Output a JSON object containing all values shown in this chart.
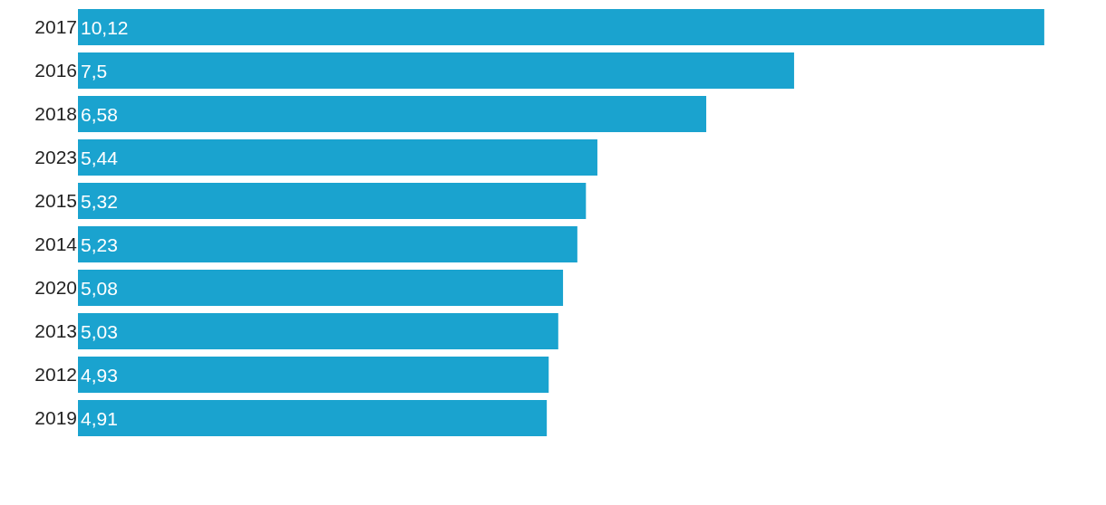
{
  "chart_data": {
    "type": "bar",
    "orientation": "horizontal",
    "categories": [
      "2017",
      "2016",
      "2018",
      "2023",
      "2015",
      "2014",
      "2020",
      "2013",
      "2012",
      "2019"
    ],
    "values": [
      10.12,
      7.5,
      6.58,
      5.44,
      5.32,
      5.23,
      5.08,
      5.03,
      4.93,
      4.91
    ],
    "value_labels": [
      "10,12",
      "7,5",
      "6,58",
      "5,44",
      "5,32",
      "5,23",
      "5,08",
      "5,03",
      "4,93",
      "4,91"
    ],
    "color": "#1aa3cf",
    "tick_labels": "y"
  }
}
